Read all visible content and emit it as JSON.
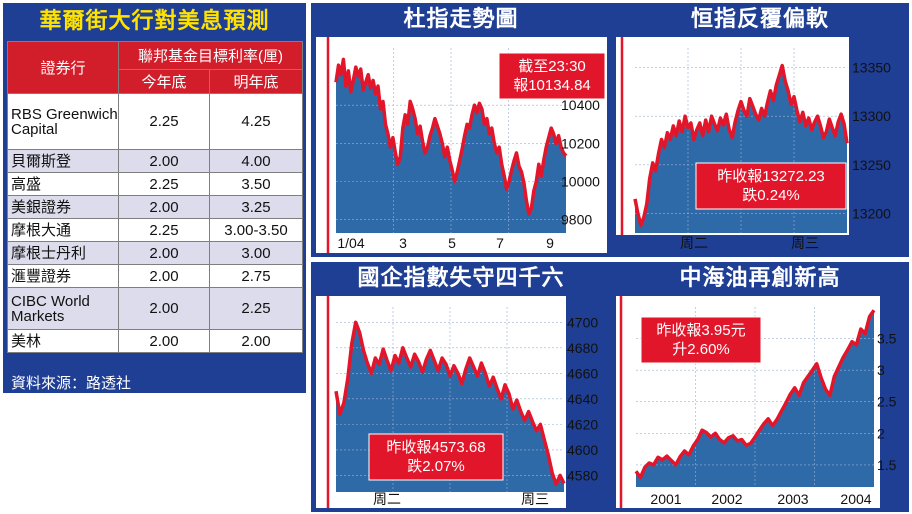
{
  "forecast": {
    "title": "華爾街大行對美息預測",
    "col_broker": "證券行",
    "col_group": "聯邦基金目標利率(厘)",
    "col_this_year": "今年底",
    "col_next_year": "明年底",
    "rows": [
      {
        "bank": "RBS Greenwich Capital",
        "this_year": "2.25",
        "next_year": "4.25"
      },
      {
        "bank": "貝爾斯登",
        "this_year": "2.00",
        "next_year": "4.00"
      },
      {
        "bank": "高盛",
        "this_year": "2.25",
        "next_year": "3.50"
      },
      {
        "bank": "美銀證券",
        "this_year": "2.00",
        "next_year": "3.25"
      },
      {
        "bank": "摩根大通",
        "this_year": "2.25",
        "next_year": "3.00-3.50"
      },
      {
        "bank": "摩根士丹利",
        "this_year": "2.00",
        "next_year": "3.00"
      },
      {
        "bank": "滙豐證券",
        "this_year": "2.00",
        "next_year": "2.75"
      },
      {
        "bank": "CIBC World Markets",
        "this_year": "2.00",
        "next_year": "2.25"
      },
      {
        "bank": "美林",
        "this_year": "2.00",
        "next_year": "2.00"
      }
    ],
    "source": "資料來源：路透社"
  },
  "colors": {
    "panel_blue": "#1f3f95",
    "plot_bg": "#ffffff",
    "area_fill": "#2f6aa8",
    "line_red": "#e2162a",
    "title_yellow": "#ffe200"
  },
  "chart_data": [
    {
      "id": "djia",
      "type": "area",
      "title": "杜指走勢圖",
      "annotation": [
        "截至23:30",
        "報10134.84"
      ],
      "x_ticks": [
        "1/04",
        "3",
        "5",
        "7",
        "9"
      ],
      "y_ticks": [
        10400,
        10200,
        10000,
        9800
      ],
      "ylim": [
        9730,
        10700
      ],
      "values": [
        10520,
        10610,
        10560,
        10640,
        10500,
        10580,
        10470,
        10530,
        10600,
        10550,
        10590,
        10480,
        10520,
        10560,
        10490,
        10530,
        10460,
        10500,
        10380,
        10420,
        10300,
        10250,
        10180,
        10230,
        10150,
        10090,
        10130,
        10280,
        10350,
        10300,
        10420,
        10380,
        10330,
        10250,
        10290,
        10210,
        10150,
        10180,
        10240,
        10280,
        10330,
        10290,
        10250,
        10200,
        10130,
        10180,
        10110,
        10060,
        10000,
        10050,
        10110,
        10170,
        10240,
        10300,
        10280,
        10350,
        10400,
        10360,
        10410,
        10380,
        10300,
        10330,
        10250,
        10280,
        10200,
        10150,
        10180,
        10090,
        10030,
        9960,
        10000,
        10060,
        10110,
        10150,
        10080,
        10050,
        9990,
        9900,
        9830,
        9860,
        9950,
        10000,
        10090,
        10030,
        10110,
        10180,
        10230,
        10280,
        10250,
        10200,
        10240,
        10180,
        10150,
        10134.84
      ]
    },
    {
      "id": "hsi",
      "type": "area",
      "title": "恒指反覆偏軟",
      "annotation": [
        "昨收報13272.23",
        "跌0.24%"
      ],
      "x_ticks": [
        "周二",
        "周三"
      ],
      "y_ticks": [
        13350,
        13300,
        13250,
        13200
      ],
      "ylim": [
        13180,
        13370
      ],
      "values": [
        13215,
        13200,
        13188,
        13196,
        13210,
        13236,
        13252,
        13244,
        13262,
        13276,
        13268,
        13283,
        13276,
        13290,
        13280,
        13295,
        13284,
        13300,
        13288,
        13293,
        13276,
        13286,
        13293,
        13280,
        13296,
        13284,
        13300,
        13292,
        13285,
        13298,
        13291,
        13302,
        13286,
        13278,
        13294,
        13306,
        13315,
        13306,
        13300,
        13318,
        13310,
        13302,
        13296,
        13308,
        13300,
        13314,
        13326,
        13316,
        13332,
        13342,
        13352,
        13336,
        13326,
        13312,
        13320,
        13306,
        13294,
        13304,
        13290,
        13298,
        13286,
        13294,
        13300,
        13290,
        13278,
        13284,
        13297,
        13288,
        13280,
        13294,
        13302,
        13292,
        13272.23
      ]
    },
    {
      "id": "hscei",
      "type": "area",
      "title": "國企指數失守四千六",
      "annotation": [
        "昨收報4573.68",
        "跌2.07%"
      ],
      "x_ticks": [
        "周二",
        "周三"
      ],
      "y_ticks": [
        4700,
        4680,
        4660,
        4640,
        4620,
        4600,
        4580
      ],
      "ylim": [
        4567,
        4712
      ],
      "values": [
        4646,
        4628,
        4637,
        4656,
        4683,
        4700,
        4692,
        4678,
        4668,
        4660,
        4672,
        4667,
        4679,
        4670,
        4662,
        4674,
        4668,
        4680,
        4672,
        4665,
        4675,
        4669,
        4661,
        4671,
        4678,
        4670,
        4662,
        4672,
        4667,
        4658,
        4666,
        4660,
        4652,
        4663,
        4672,
        4665,
        4658,
        4668,
        4660,
        4650,
        4657,
        4648,
        4640,
        4651,
        4644,
        4632,
        4639,
        4630,
        4623,
        4630,
        4622,
        4615,
        4620,
        4608,
        4596,
        4582,
        4573,
        4580,
        4573.68
      ]
    },
    {
      "id": "cnooc",
      "type": "area",
      "title": "中海油再創新高",
      "annotation": [
        "昨收報3.95元",
        "升2.60%"
      ],
      "x_ticks": [
        "2001",
        "2002",
        "2003",
        "2004"
      ],
      "y_ticks": [
        3.5,
        3.0,
        2.5,
        2.0,
        1.5
      ],
      "ylim": [
        1.15,
        4.0
      ],
      "values": [
        1.4,
        1.3,
        1.46,
        1.53,
        1.5,
        1.62,
        1.58,
        1.64,
        1.57,
        1.5,
        1.63,
        1.72,
        1.66,
        1.8,
        1.9,
        2.05,
        2.01,
        1.94,
        2.0,
        1.9,
        1.85,
        1.93,
        1.96,
        1.88,
        1.9,
        1.81,
        1.84,
        1.94,
        2.05,
        2.15,
        2.23,
        2.12,
        2.22,
        2.35,
        2.48,
        2.62,
        2.72,
        2.6,
        2.8,
        2.9,
        3.0,
        3.1,
        2.88,
        2.7,
        2.6,
        2.9,
        3.05,
        3.2,
        3.32,
        3.45,
        3.4,
        3.65,
        3.58,
        3.85,
        3.95
      ]
    }
  ]
}
